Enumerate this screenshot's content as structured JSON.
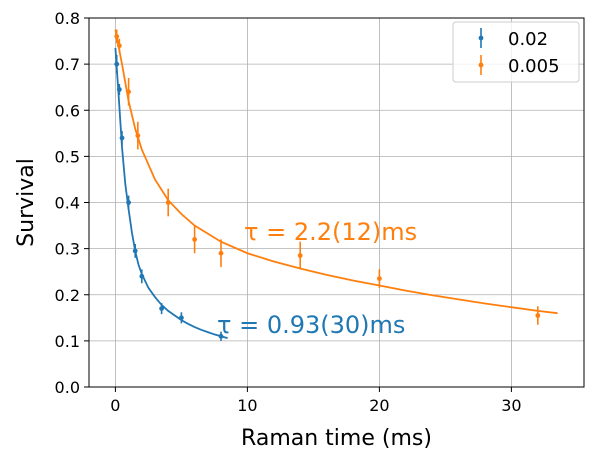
{
  "chart_data": {
    "type": "scatter",
    "xlabel": "Raman time (ms)",
    "ylabel": "Survival",
    "xlim": [
      -2,
      35.5
    ],
    "ylim": [
      0,
      0.8
    ],
    "xticks": [
      0,
      10,
      20,
      30
    ],
    "yticks": [
      0.0,
      0.1,
      0.2,
      0.3,
      0.4,
      0.5,
      0.6,
      0.7,
      0.8
    ],
    "grid": true,
    "legend_position": "top-right",
    "series": [
      {
        "name": "0.02",
        "color": "#1f77b4",
        "points": [
          {
            "x": 0.1,
            "y": 0.7,
            "err": 0.02
          },
          {
            "x": 0.3,
            "y": 0.645,
            "err": 0.012
          },
          {
            "x": 0.5,
            "y": 0.54,
            "err": 0.015
          },
          {
            "x": 1.0,
            "y": 0.4,
            "err": 0.015
          },
          {
            "x": 1.5,
            "y": 0.295,
            "err": 0.015
          },
          {
            "x": 2.0,
            "y": 0.24,
            "err": 0.015
          },
          {
            "x": 3.5,
            "y": 0.17,
            "err": 0.012
          },
          {
            "x": 5.0,
            "y": 0.15,
            "err": 0.012
          },
          {
            "x": 8.0,
            "y": 0.11,
            "err": 0.01
          }
        ],
        "fit": {
          "x": [
            0,
            0.25,
            0.5,
            0.75,
            1.0,
            1.25,
            1.5,
            1.75,
            2.0,
            2.5,
            3.0,
            3.5,
            4.0,
            4.5,
            5.0,
            5.5,
            6.0,
            6.5,
            7.0,
            7.5,
            8.0,
            8.5
          ],
          "y": [
            0.735,
            0.63,
            0.52,
            0.44,
            0.385,
            0.335,
            0.295,
            0.265,
            0.245,
            0.215,
            0.195,
            0.178,
            0.165,
            0.155,
            0.145,
            0.137,
            0.13,
            0.124,
            0.119,
            0.114,
            0.11,
            0.106
          ]
        },
        "annotation": "τ = 0.93(30)ms"
      },
      {
        "name": "0.005",
        "color": "#ff7f0e",
        "points": [
          {
            "x": 0.1,
            "y": 0.76,
            "err": 0.015
          },
          {
            "x": 0.3,
            "y": 0.74,
            "err": 0.015
          },
          {
            "x": 1.0,
            "y": 0.64,
            "err": 0.03
          },
          {
            "x": 1.7,
            "y": 0.545,
            "err": 0.03
          },
          {
            "x": 4.0,
            "y": 0.4,
            "err": 0.03
          },
          {
            "x": 6.0,
            "y": 0.32,
            "err": 0.03
          },
          {
            "x": 8.0,
            "y": 0.29,
            "err": 0.03
          },
          {
            "x": 14.0,
            "y": 0.285,
            "err": 0.03
          },
          {
            "x": 20.0,
            "y": 0.235,
            "err": 0.02
          },
          {
            "x": 32.0,
            "y": 0.155,
            "err": 0.02
          }
        ],
        "fit": {
          "x": [
            0,
            0.5,
            1.0,
            1.5,
            2.0,
            3.0,
            4.0,
            5.0,
            6.0,
            8.0,
            10.0,
            12.0,
            14.0,
            16.0,
            18.0,
            20.0,
            22.0,
            24.0,
            26.0,
            28.0,
            30.0,
            32.0,
            33.5
          ],
          "y": [
            0.775,
            0.7,
            0.62,
            0.56,
            0.515,
            0.45,
            0.405,
            0.375,
            0.35,
            0.315,
            0.29,
            0.272,
            0.257,
            0.243,
            0.231,
            0.22,
            0.209,
            0.199,
            0.19,
            0.181,
            0.173,
            0.165,
            0.16
          ]
        },
        "annotation": "τ = 2.2(12)ms"
      }
    ]
  }
}
